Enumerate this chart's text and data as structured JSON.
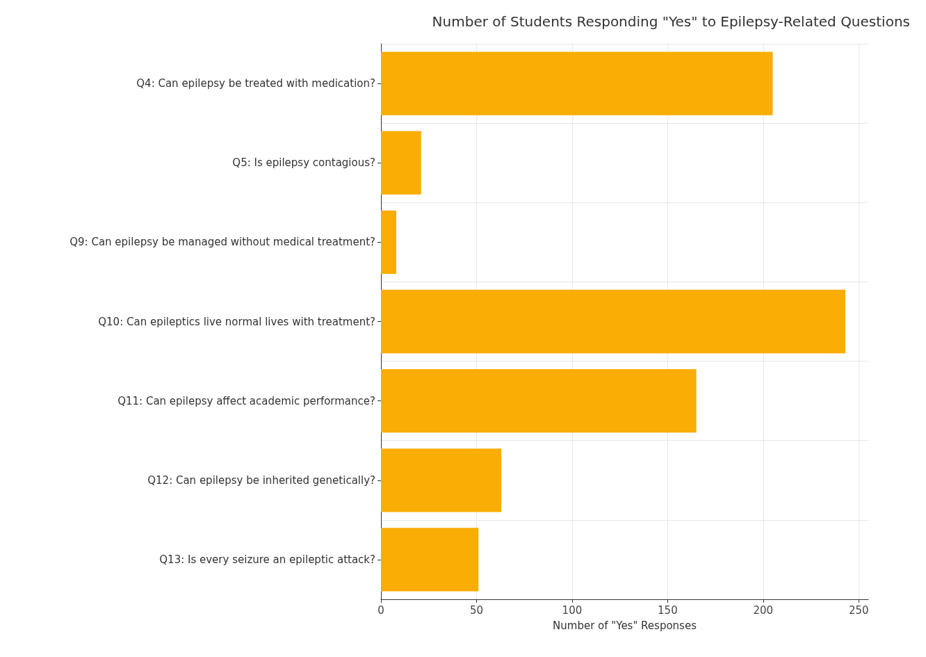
{
  "chart_data": {
    "type": "bar",
    "orientation": "horizontal",
    "title": "Number of Students Responding \"Yes\" to Epilepsy-Related Questions",
    "xlabel": "Number of \"Yes\" Responses",
    "categories": [
      "Q4: Can epilepsy be treated with medication?",
      "Q5: Is epilepsy contagious?",
      "Q9: Can epilepsy be managed without medical treatment?",
      "Q10: Can epileptics live normal lives with treatment?",
      "Q11: Can epilepsy affect academic performance?",
      "Q12: Can epilepsy be inherited genetically?",
      "Q13: Is every seizure an epileptic attack?"
    ],
    "values": [
      205,
      21,
      8,
      243,
      165,
      63,
      51
    ],
    "color": "#f9ad05",
    "xlim": [
      0,
      255
    ],
    "xticks": [
      0,
      50,
      100,
      150,
      200,
      250
    ],
    "grid": true
  }
}
